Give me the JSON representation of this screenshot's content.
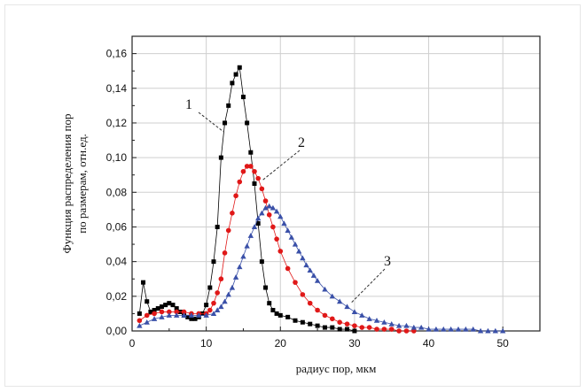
{
  "chart_data": {
    "type": "scatter",
    "xlabel": "радиус пор, мкм",
    "ylabel": [
      "Функция распределения пор",
      "по размерам, отн.ед."
    ],
    "xlim": [
      0,
      55
    ],
    "ylim": [
      0,
      0.17
    ],
    "x_ticks": [
      "0",
      "10",
      "20",
      "30",
      "40",
      "50"
    ],
    "y_ticks": [
      "0,00",
      "0,02",
      "0,04",
      "0,06",
      "0,08",
      "0,10",
      "0,12",
      "0,14",
      "0,16"
    ],
    "x_tick_values": [
      0,
      10,
      20,
      30,
      40,
      50
    ],
    "y_tick_values": [
      0,
      0.02,
      0.04,
      0.06,
      0.08,
      0.1,
      0.12,
      0.14,
      0.16
    ],
    "grid": true,
    "annotations": [
      {
        "text": "1",
        "points_to": "series 1 near x=12, y=0.12"
      },
      {
        "text": "2",
        "points_to": "series 2 near x=17.5, y=0.088"
      },
      {
        "text": "3",
        "points_to": "series 3 near x=29, y=0.018"
      }
    ],
    "series": [
      {
        "marker": "square",
        "color": "#000000",
        "points": [
          [
            1,
            0.01
          ],
          [
            1.5,
            0.028
          ],
          [
            2,
            0.017
          ],
          [
            2.5,
            0.011
          ],
          [
            3,
            0.012
          ],
          [
            3.5,
            0.013
          ],
          [
            4,
            0.014
          ],
          [
            4.5,
            0.015
          ],
          [
            5,
            0.016
          ],
          [
            5.5,
            0.015
          ],
          [
            6,
            0.013
          ],
          [
            6.5,
            0.011
          ],
          [
            7,
            0.009
          ],
          [
            7.5,
            0.008
          ],
          [
            8,
            0.007
          ],
          [
            8.5,
            0.007
          ],
          [
            9,
            0.008
          ],
          [
            9.5,
            0.01
          ],
          [
            10,
            0.015
          ],
          [
            10.5,
            0.025
          ],
          [
            11,
            0.04
          ],
          [
            11.5,
            0.06
          ],
          [
            12,
            0.1
          ],
          [
            12.5,
            0.12
          ],
          [
            13,
            0.13
          ],
          [
            13.5,
            0.143
          ],
          [
            14,
            0.148
          ],
          [
            14.5,
            0.152
          ],
          [
            15,
            0.135
          ],
          [
            15.5,
            0.12
          ],
          [
            16,
            0.103
          ],
          [
            16.5,
            0.085
          ],
          [
            17,
            0.062
          ],
          [
            17.5,
            0.04
          ],
          [
            18,
            0.025
          ],
          [
            18.5,
            0.016
          ],
          [
            19,
            0.012
          ],
          [
            19.5,
            0.01
          ],
          [
            20,
            0.009
          ],
          [
            21,
            0.008
          ],
          [
            22,
            0.006
          ],
          [
            23,
            0.005
          ],
          [
            24,
            0.004
          ],
          [
            25,
            0.003
          ],
          [
            26,
            0.002
          ],
          [
            27,
            0.002
          ],
          [
            28,
            0.001
          ],
          [
            29,
            0.001
          ],
          [
            30,
            0
          ]
        ]
      },
      {
        "marker": "circle",
        "color": "#e01818",
        "points": [
          [
            1,
            0.006
          ],
          [
            2,
            0.009
          ],
          [
            3,
            0.01
          ],
          [
            4,
            0.011
          ],
          [
            5,
            0.011
          ],
          [
            6,
            0.011
          ],
          [
            7,
            0.011
          ],
          [
            8,
            0.01
          ],
          [
            9,
            0.01
          ],
          [
            10,
            0.01
          ],
          [
            10.5,
            0.012
          ],
          [
            11,
            0.016
          ],
          [
            11.5,
            0.022
          ],
          [
            12,
            0.03
          ],
          [
            12.5,
            0.045
          ],
          [
            13,
            0.058
          ],
          [
            13.5,
            0.068
          ],
          [
            14,
            0.078
          ],
          [
            14.5,
            0.086
          ],
          [
            15,
            0.092
          ],
          [
            15.5,
            0.095
          ],
          [
            16,
            0.095
          ],
          [
            16.5,
            0.092
          ],
          [
            17,
            0.088
          ],
          [
            17.5,
            0.082
          ],
          [
            18,
            0.075
          ],
          [
            18.5,
            0.067
          ],
          [
            19,
            0.06
          ],
          [
            19.5,
            0.053
          ],
          [
            20,
            0.046
          ],
          [
            21,
            0.036
          ],
          [
            22,
            0.028
          ],
          [
            23,
            0.021
          ],
          [
            24,
            0.016
          ],
          [
            25,
            0.012
          ],
          [
            26,
            0.009
          ],
          [
            27,
            0.007
          ],
          [
            28,
            0.005
          ],
          [
            29,
            0.004
          ],
          [
            30,
            0.003
          ],
          [
            31,
            0.002
          ],
          [
            32,
            0.002
          ],
          [
            33,
            0.001
          ],
          [
            34,
            0.001
          ],
          [
            35,
            0.001
          ],
          [
            36,
            0
          ],
          [
            37,
            0
          ],
          [
            38,
            0
          ]
        ]
      },
      {
        "marker": "triangle",
        "color": "#3a50a8",
        "points": [
          [
            1,
            0.003
          ],
          [
            2,
            0.005
          ],
          [
            3,
            0.007
          ],
          [
            4,
            0.008
          ],
          [
            5,
            0.009
          ],
          [
            6,
            0.009
          ],
          [
            7,
            0.009
          ],
          [
            8,
            0.009
          ],
          [
            9,
            0.009
          ],
          [
            10,
            0.009
          ],
          [
            11,
            0.01
          ],
          [
            11.5,
            0.012
          ],
          [
            12,
            0.014
          ],
          [
            12.5,
            0.017
          ],
          [
            13,
            0.021
          ],
          [
            13.5,
            0.025
          ],
          [
            14,
            0.031
          ],
          [
            14.5,
            0.037
          ],
          [
            15,
            0.043
          ],
          [
            15.5,
            0.049
          ],
          [
            16,
            0.055
          ],
          [
            16.5,
            0.06
          ],
          [
            17,
            0.065
          ],
          [
            17.5,
            0.068
          ],
          [
            18,
            0.071
          ],
          [
            18.5,
            0.072
          ],
          [
            19,
            0.071
          ],
          [
            19.5,
            0.069
          ],
          [
            20,
            0.066
          ],
          [
            20.5,
            0.062
          ],
          [
            21,
            0.058
          ],
          [
            21.5,
            0.054
          ],
          [
            22,
            0.05
          ],
          [
            22.5,
            0.046
          ],
          [
            23,
            0.042
          ],
          [
            23.5,
            0.038
          ],
          [
            24,
            0.035
          ],
          [
            24.5,
            0.032
          ],
          [
            25,
            0.029
          ],
          [
            26,
            0.024
          ],
          [
            27,
            0.02
          ],
          [
            28,
            0.017
          ],
          [
            29,
            0.014
          ],
          [
            30,
            0.011
          ],
          [
            31,
            0.009
          ],
          [
            32,
            0.007
          ],
          [
            33,
            0.006
          ],
          [
            34,
            0.005
          ],
          [
            35,
            0.004
          ],
          [
            36,
            0.003
          ],
          [
            37,
            0.003
          ],
          [
            38,
            0.002
          ],
          [
            39,
            0.002
          ],
          [
            40,
            0.001
          ],
          [
            41,
            0.001
          ],
          [
            42,
            0.001
          ],
          [
            43,
            0.001
          ],
          [
            44,
            0.001
          ],
          [
            45,
            0.001
          ],
          [
            46,
            0.001
          ],
          [
            47,
            0
          ],
          [
            48,
            0
          ],
          [
            49,
            0
          ],
          [
            50,
            0
          ]
        ]
      }
    ]
  }
}
